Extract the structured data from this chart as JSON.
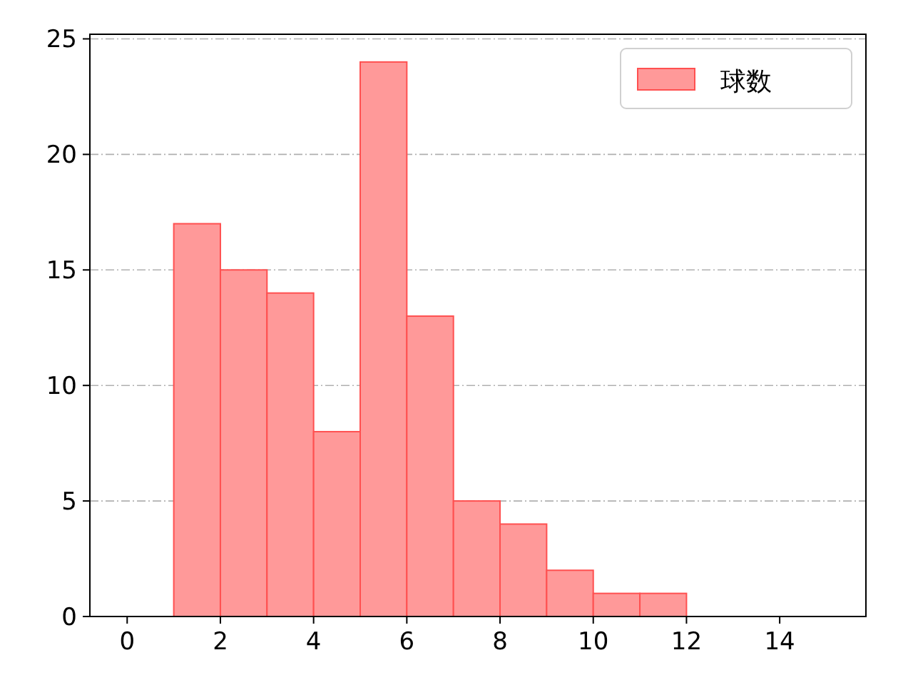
{
  "chart_data": {
    "type": "histogram",
    "bins": [
      1,
      2,
      3,
      4,
      5,
      6,
      7,
      8,
      9,
      10,
      11,
      12
    ],
    "series": [
      {
        "name": "球数",
        "color": "#ff9999",
        "values": [
          17,
          15,
          14,
          8,
          24,
          13,
          5,
          4,
          2,
          1,
          1
        ]
      }
    ],
    "xlim": [
      -0.8,
      15.85
    ],
    "xticks": [
      0,
      2,
      4,
      6,
      8,
      10,
      12,
      14
    ],
    "ylim": [
      0,
      25.2
    ],
    "yticks": [
      0,
      5,
      10,
      15,
      20,
      25
    ],
    "grid": "y",
    "legend": "top right"
  }
}
